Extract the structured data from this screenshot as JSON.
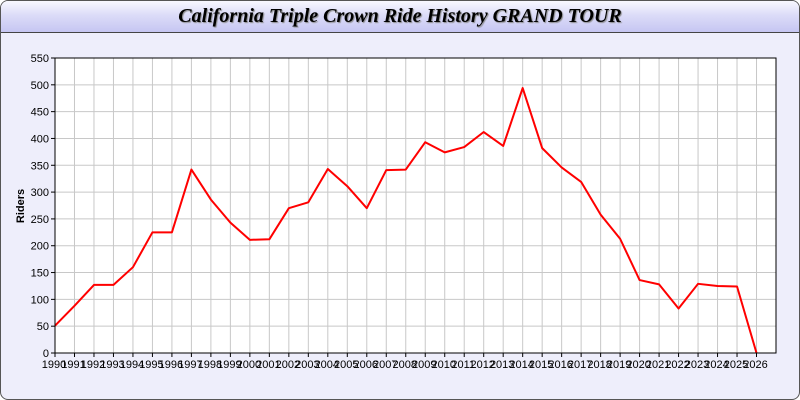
{
  "chart_data": {
    "type": "line",
    "title": "California Triple Crown Ride History GRAND TOUR",
    "xlabel": "",
    "ylabel": "Riders",
    "x": [
      1990,
      1991,
      1992,
      1993,
      1994,
      1995,
      1996,
      1997,
      1998,
      1999,
      2000,
      2001,
      2002,
      2003,
      2004,
      2005,
      2006,
      2007,
      2008,
      2009,
      2010,
      2011,
      2012,
      2013,
      2014,
      2015,
      2016,
      2017,
      2018,
      2019,
      2020,
      2021,
      2022,
      2023,
      2024,
      2025,
      2026
    ],
    "series": [
      {
        "values": [
          51,
          88,
          127,
          127,
          160,
          225,
          225,
          342,
          286,
          243,
          211,
          212,
          270,
          281,
          343,
          311,
          270,
          341,
          342,
          393,
          374,
          384,
          412,
          386,
          494,
          382,
          346,
          319,
          258,
          213,
          136,
          128,
          83,
          129,
          125,
          124,
          0
        ],
        "color": "#ff0000"
      }
    ],
    "yticks": [
      0,
      50,
      100,
      150,
      200,
      250,
      300,
      350,
      400,
      450,
      500,
      550
    ],
    "ylim": [
      0,
      550
    ],
    "xlim": [
      1990,
      2027
    ],
    "grid": true,
    "colors": {
      "background": "#eeeefb",
      "plot": "#ffffff",
      "grid": "#c8c8c8",
      "line": "#ff0000"
    }
  }
}
